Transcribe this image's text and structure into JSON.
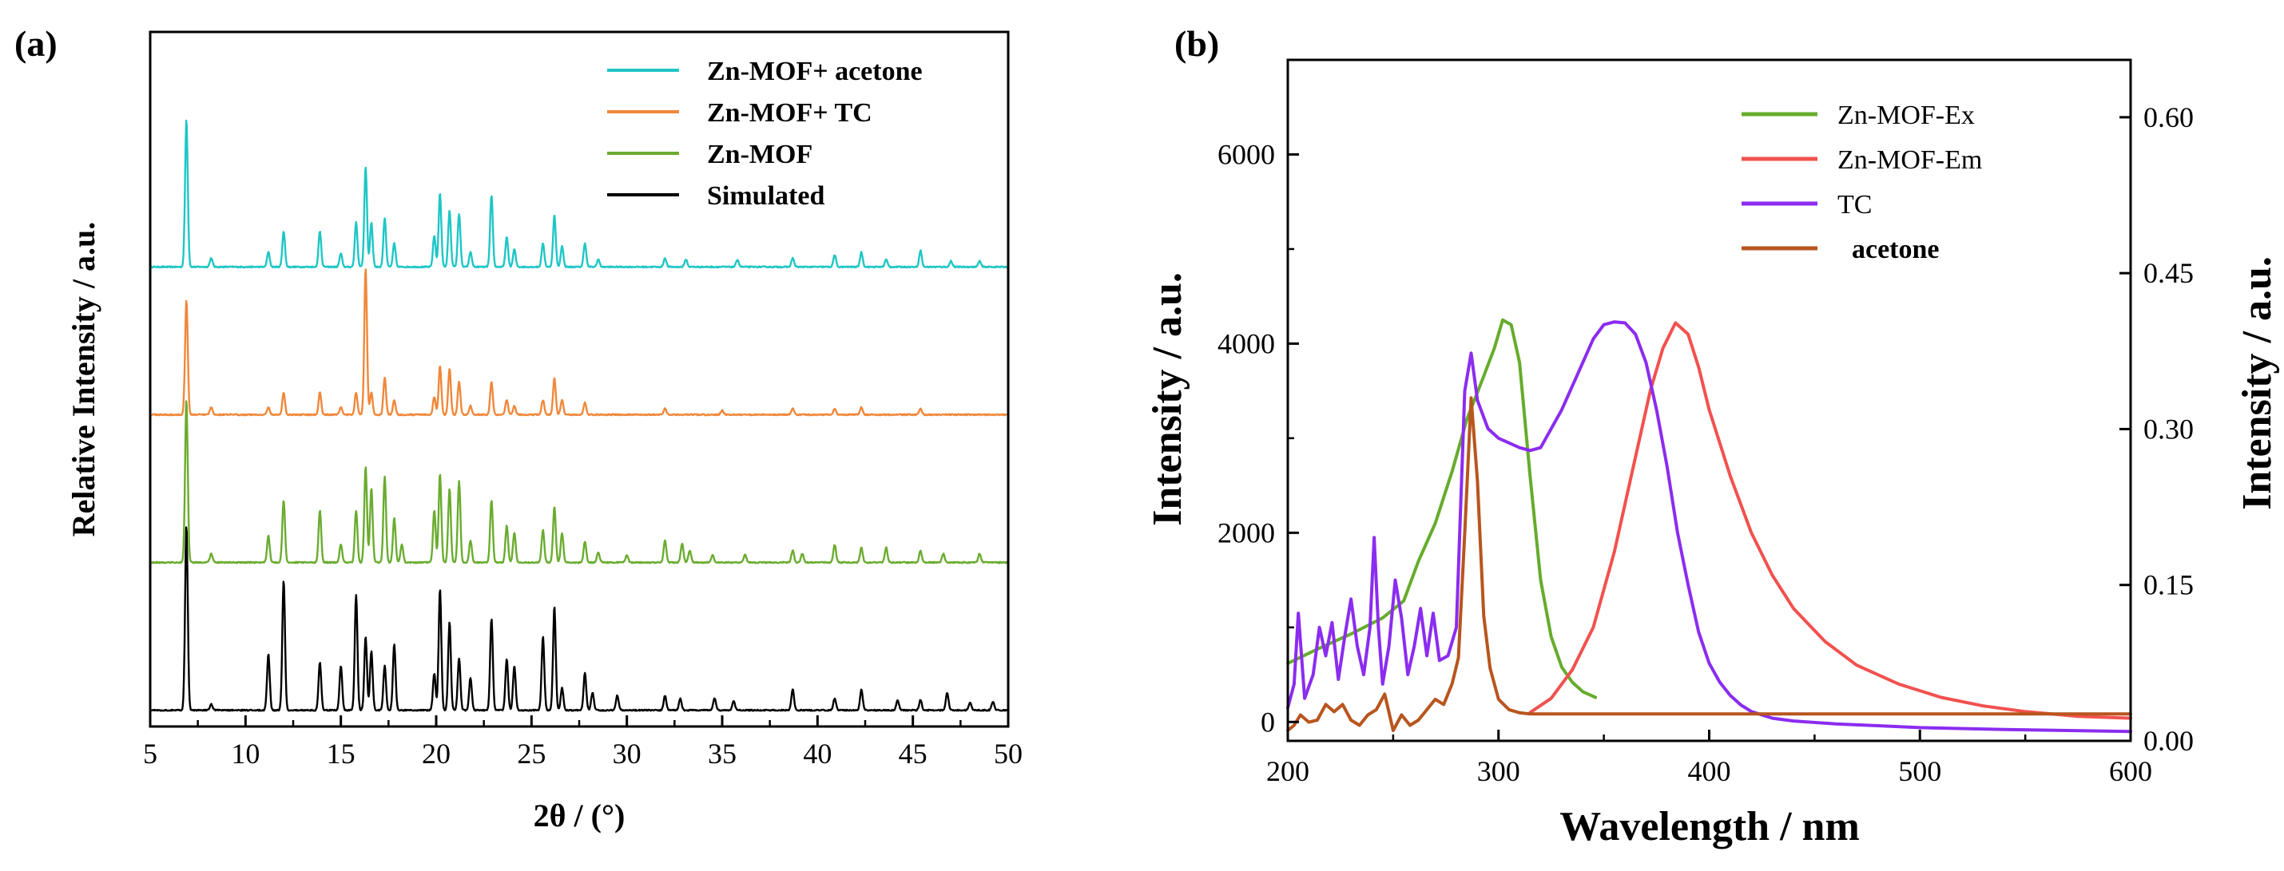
{
  "chart_data": [
    {
      "panel": "(a)",
      "type": "line",
      "title": "",
      "xlabel": "2θ / (°)",
      "ylabel": "Relative Intensity / a.u.",
      "xlim": [
        5,
        50
      ],
      "xticks": [
        "5",
        "10",
        "15",
        "20",
        "25",
        "30",
        "35",
        "40",
        "45",
        "50"
      ],
      "yticks_shown": false,
      "ylim": [
        -0.1,
        4.6
      ],
      "legend": "top-right",
      "series": [
        {
          "name": "Zn-MOF+ acetone",
          "color": "#1fc6c6",
          "offset": 3.0,
          "peaks": [
            [
              6.9,
              1.0
            ],
            [
              8.2,
              0.06
            ],
            [
              11.2,
              0.1
            ],
            [
              12.0,
              0.24
            ],
            [
              13.9,
              0.24
            ],
            [
              15.0,
              0.09
            ],
            [
              15.8,
              0.3
            ],
            [
              16.3,
              0.68
            ],
            [
              16.6,
              0.3
            ],
            [
              17.3,
              0.33
            ],
            [
              17.8,
              0.16
            ],
            [
              19.9,
              0.21
            ],
            [
              20.2,
              0.5
            ],
            [
              20.7,
              0.38
            ],
            [
              21.2,
              0.36
            ],
            [
              21.8,
              0.1
            ],
            [
              22.9,
              0.48
            ],
            [
              23.7,
              0.2
            ],
            [
              24.1,
              0.12
            ],
            [
              25.6,
              0.16
            ],
            [
              26.2,
              0.35
            ],
            [
              26.6,
              0.14
            ],
            [
              27.8,
              0.16
            ],
            [
              28.5,
              0.05
            ],
            [
              32.0,
              0.06
            ],
            [
              33.1,
              0.05
            ],
            [
              35.8,
              0.05
            ],
            [
              38.7,
              0.06
            ],
            [
              40.9,
              0.08
            ],
            [
              42.3,
              0.1
            ],
            [
              43.6,
              0.05
            ],
            [
              45.4,
              0.11
            ],
            [
              47.0,
              0.04
            ],
            [
              48.5,
              0.04
            ]
          ]
        },
        {
          "name": "Zn-MOF+ TC",
          "color": "#f0883a",
          "offset": 2.0,
          "peaks": [
            [
              6.9,
              0.78
            ],
            [
              8.2,
              0.05
            ],
            [
              11.2,
              0.05
            ],
            [
              12.0,
              0.15
            ],
            [
              13.9,
              0.15
            ],
            [
              15.0,
              0.05
            ],
            [
              15.8,
              0.15
            ],
            [
              16.3,
              0.99
            ],
            [
              16.6,
              0.15
            ],
            [
              17.3,
              0.25
            ],
            [
              17.8,
              0.1
            ],
            [
              19.9,
              0.12
            ],
            [
              20.2,
              0.33
            ],
            [
              20.7,
              0.31
            ],
            [
              21.2,
              0.22
            ],
            [
              21.8,
              0.06
            ],
            [
              22.9,
              0.22
            ],
            [
              23.7,
              0.1
            ],
            [
              24.1,
              0.06
            ],
            [
              25.6,
              0.1
            ],
            [
              26.2,
              0.25
            ],
            [
              26.6,
              0.1
            ],
            [
              27.8,
              0.08
            ],
            [
              32.0,
              0.04
            ],
            [
              35.0,
              0.03
            ],
            [
              38.7,
              0.04
            ],
            [
              40.9,
              0.04
            ],
            [
              42.3,
              0.05
            ],
            [
              45.4,
              0.04
            ]
          ]
        },
        {
          "name": "Zn-MOF",
          "color": "#6aac2f",
          "offset": 1.0,
          "peaks": [
            [
              6.9,
              1.1
            ],
            [
              8.2,
              0.06
            ],
            [
              11.2,
              0.18
            ],
            [
              12.0,
              0.42
            ],
            [
              13.9,
              0.35
            ],
            [
              15.0,
              0.12
            ],
            [
              15.8,
              0.35
            ],
            [
              16.3,
              0.65
            ],
            [
              16.6,
              0.5
            ],
            [
              17.3,
              0.58
            ],
            [
              17.8,
              0.3
            ],
            [
              18.2,
              0.12
            ],
            [
              19.9,
              0.35
            ],
            [
              20.2,
              0.6
            ],
            [
              20.7,
              0.5
            ],
            [
              21.2,
              0.55
            ],
            [
              21.8,
              0.15
            ],
            [
              22.9,
              0.42
            ],
            [
              23.7,
              0.25
            ],
            [
              24.1,
              0.2
            ],
            [
              25.6,
              0.22
            ],
            [
              26.2,
              0.38
            ],
            [
              26.6,
              0.2
            ],
            [
              27.8,
              0.14
            ],
            [
              28.5,
              0.07
            ],
            [
              30.0,
              0.05
            ],
            [
              32.0,
              0.15
            ],
            [
              32.9,
              0.13
            ],
            [
              33.3,
              0.08
            ],
            [
              34.5,
              0.05
            ],
            [
              36.2,
              0.05
            ],
            [
              38.7,
              0.08
            ],
            [
              39.2,
              0.06
            ],
            [
              40.9,
              0.12
            ],
            [
              42.3,
              0.1
            ],
            [
              43.6,
              0.1
            ],
            [
              45.4,
              0.08
            ],
            [
              46.6,
              0.06
            ],
            [
              48.5,
              0.06
            ]
          ]
        },
        {
          "name": "Simulated",
          "color": "#000000",
          "offset": 0.0,
          "peaks": [
            [
              6.9,
              1.25
            ],
            [
              8.2,
              0.04
            ],
            [
              11.2,
              0.38
            ],
            [
              12.0,
              0.88
            ],
            [
              13.9,
              0.32
            ],
            [
              15.0,
              0.3
            ],
            [
              15.8,
              0.78
            ],
            [
              16.3,
              0.5
            ],
            [
              16.6,
              0.4
            ],
            [
              17.3,
              0.3
            ],
            [
              17.8,
              0.45
            ],
            [
              19.9,
              0.25
            ],
            [
              20.2,
              0.82
            ],
            [
              20.7,
              0.6
            ],
            [
              21.2,
              0.35
            ],
            [
              21.8,
              0.22
            ],
            [
              22.9,
              0.62
            ],
            [
              23.7,
              0.35
            ],
            [
              24.1,
              0.3
            ],
            [
              25.6,
              0.5
            ],
            [
              26.2,
              0.7
            ],
            [
              26.6,
              0.15
            ],
            [
              27.8,
              0.25
            ],
            [
              28.2,
              0.12
            ],
            [
              29.5,
              0.1
            ],
            [
              32.0,
              0.1
            ],
            [
              32.8,
              0.08
            ],
            [
              34.6,
              0.08
            ],
            [
              35.6,
              0.06
            ],
            [
              38.7,
              0.14
            ],
            [
              40.9,
              0.08
            ],
            [
              42.3,
              0.14
            ],
            [
              44.2,
              0.07
            ],
            [
              45.4,
              0.07
            ],
            [
              46.8,
              0.12
            ],
            [
              48.0,
              0.05
            ],
            [
              49.2,
              0.06
            ]
          ]
        }
      ]
    },
    {
      "panel": "(b)",
      "type": "line",
      "title": "",
      "xlabel": "Wavelength / nm",
      "ylabel": "Intensity / a.u.",
      "ylabel_right": "Intensity / a.u.",
      "xlim": [
        200,
        600
      ],
      "ylim": [
        -200,
        7000
      ],
      "ylim_right": [
        0.0,
        0.6552
      ],
      "xticks": [
        "200",
        "300",
        "400",
        "500",
        "600"
      ],
      "yticks": [
        "0",
        "2000",
        "4000",
        "6000"
      ],
      "yticks_right": [
        "0.00",
        "0.15",
        "0.30",
        "0.45",
        "0.60"
      ],
      "legend": "top-right",
      "series": [
        {
          "name": "Zn-MOF-Ex",
          "color": "#66ac2c",
          "axis": "left",
          "x": [
            200,
            215,
            230,
            245,
            255,
            262,
            270,
            278,
            285,
            292,
            298,
            302,
            306,
            310,
            315,
            320,
            325,
            330,
            335,
            340,
            346
          ],
          "y": [
            620,
            780,
            930,
            1100,
            1280,
            1700,
            2100,
            2650,
            3200,
            3600,
            3950,
            4250,
            4200,
            3800,
            2600,
            1500,
            900,
            580,
            420,
            320,
            260
          ]
        },
        {
          "name": "Zn-MOF-Em",
          "color": "#f2514e",
          "axis": "left",
          "x": [
            315,
            325,
            335,
            345,
            355,
            365,
            372,
            378,
            384,
            390,
            395,
            400,
            410,
            420,
            430,
            440,
            455,
            470,
            490,
            510,
            530,
            550,
            575,
            600
          ],
          "y": [
            100,
            250,
            550,
            1000,
            1800,
            2800,
            3500,
            3950,
            4220,
            4100,
            3750,
            3300,
            2600,
            2000,
            1550,
            1200,
            850,
            600,
            400,
            260,
            170,
            110,
            60,
            40
          ]
        },
        {
          "name": "TC",
          "color": "#8b2cf0",
          "axis": "left",
          "x": [
            200,
            203,
            205,
            208,
            212,
            215,
            218,
            221,
            224,
            227,
            230,
            233,
            236,
            239,
            241,
            243,
            245,
            248,
            251,
            254,
            257,
            260,
            263,
            266,
            269,
            272,
            276,
            280,
            284,
            287,
            290,
            295,
            300,
            305,
            310,
            315,
            320,
            325,
            330,
            335,
            340,
            345,
            350,
            355,
            360,
            365,
            370,
            375,
            380,
            385,
            390,
            395,
            400,
            405,
            410,
            415,
            420,
            430,
            440,
            460,
            480,
            500,
            540,
            600
          ],
          "y": [
            150,
            400,
            1150,
            250,
            500,
            1000,
            700,
            1050,
            450,
            900,
            1300,
            800,
            500,
            1000,
            1950,
            1000,
            400,
            800,
            1500,
            1100,
            500,
            800,
            1200,
            700,
            1150,
            650,
            700,
            1000,
            3500,
            3900,
            3400,
            3100,
            3000,
            2950,
            2900,
            2870,
            2900,
            3100,
            3300,
            3550,
            3800,
            4050,
            4200,
            4230,
            4220,
            4100,
            3800,
            3300,
            2700,
            2000,
            1450,
            950,
            620,
            420,
            280,
            180,
            110,
            40,
            10,
            -20,
            -40,
            -60,
            -80,
            -100
          ]
        },
        {
          "name": "acetone",
          "color": "#b8551e",
          "axis": "right",
          "x": [
            200,
            203,
            206,
            210,
            214,
            218,
            222,
            226,
            230,
            234,
            238,
            242,
            246,
            250,
            254,
            258,
            262,
            266,
            270,
            274,
            278,
            281,
            284,
            287,
            290,
            293,
            296,
            300,
            305,
            310,
            315,
            320,
            350,
            400,
            450,
            500,
            550,
            600
          ],
          "y": [
            0.01,
            0.015,
            0.025,
            0.018,
            0.02,
            0.035,
            0.028,
            0.035,
            0.02,
            0.015,
            0.025,
            0.03,
            0.045,
            0.01,
            0.025,
            0.015,
            0.02,
            0.03,
            0.04,
            0.035,
            0.055,
            0.08,
            0.2,
            0.33,
            0.25,
            0.12,
            0.07,
            0.04,
            0.03,
            0.027,
            0.026,
            0.026,
            0.026,
            0.026,
            0.026,
            0.026,
            0.026,
            0.026
          ]
        }
      ]
    }
  ]
}
